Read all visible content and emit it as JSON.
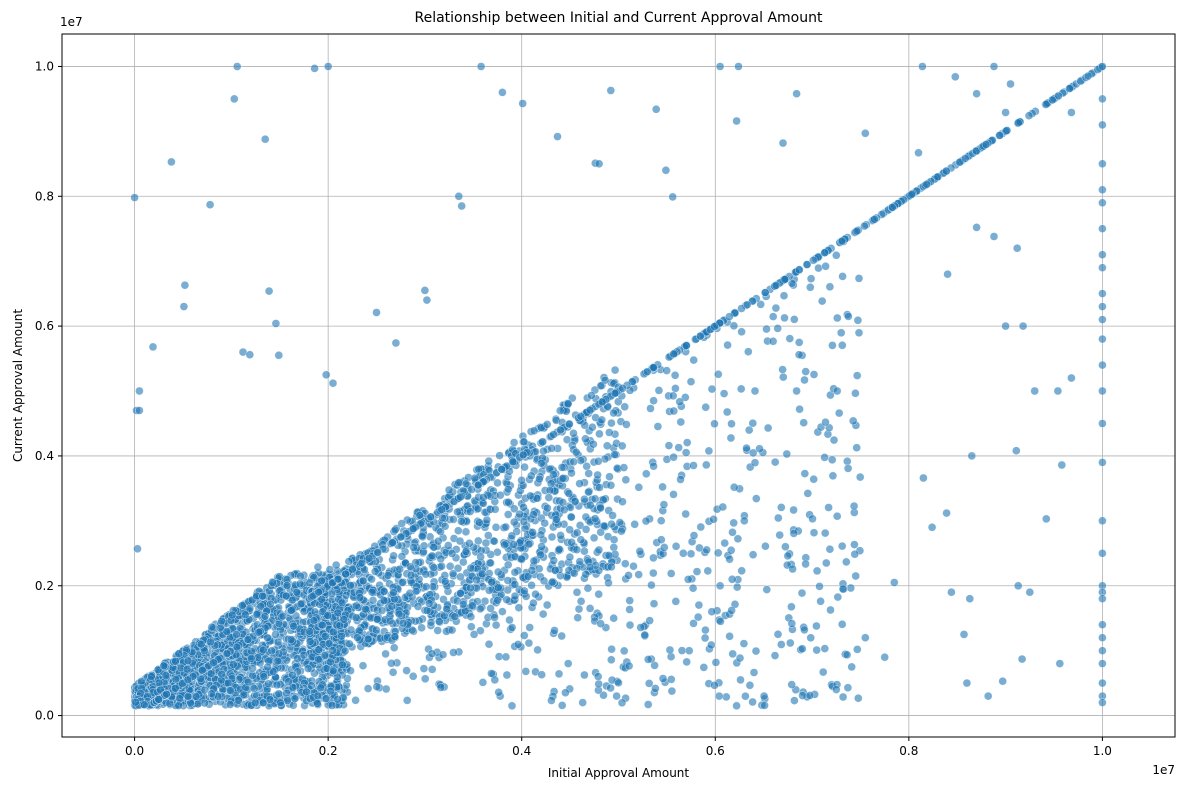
{
  "chart_data": {
    "type": "scatter",
    "title": "Relationship between Initial and Current Approval Amount",
    "xlabel": "Initial Approval Amount",
    "ylabel": "Current Approval Amount",
    "x_offset_label": "1e7",
    "y_offset_label": "1e7",
    "xlim": [
      -750000,
      10750000
    ],
    "ylim": [
      -330000,
      10500000
    ],
    "xticks": [
      0,
      2000000,
      4000000,
      6000000,
      8000000,
      10000000
    ],
    "yticks": [
      0,
      2000000,
      4000000,
      6000000,
      8000000,
      10000000
    ],
    "xtick_labels": [
      "0.0",
      "0.2",
      "0.4",
      "0.6",
      "0.8",
      "1.0"
    ],
    "ytick_labels": [
      "0.0",
      "0.2",
      "0.4",
      "0.6",
      "0.8",
      "1.0"
    ],
    "grid": true,
    "point_color": "#1f77b4",
    "point_alpha": 0.6,
    "series": [
      {
        "points_sample": [
          [
            0,
            7980000
          ],
          [
            20000,
            4700000
          ],
          [
            50000,
            5000000
          ],
          [
            50000,
            4700000
          ],
          [
            30000,
            2570000
          ],
          [
            190000,
            5680000
          ],
          [
            380000,
            8530000
          ],
          [
            520000,
            6630000
          ],
          [
            510000,
            6300000
          ],
          [
            780000,
            7870000
          ],
          [
            1030000,
            9500000
          ],
          [
            1060000,
            10000000
          ],
          [
            1350000,
            8880000
          ],
          [
            1390000,
            6540000
          ],
          [
            1460000,
            6040000
          ],
          [
            1120000,
            5600000
          ],
          [
            1190000,
            5560000
          ],
          [
            1490000,
            5550000
          ],
          [
            1860000,
            9970000
          ],
          [
            2000000,
            10000000
          ],
          [
            1980000,
            5250000
          ],
          [
            2050000,
            5120000
          ],
          [
            2500000,
            6210000
          ],
          [
            2700000,
            5740000
          ],
          [
            3000000,
            6550000
          ],
          [
            3020000,
            6400000
          ],
          [
            3350000,
            8000000
          ],
          [
            3380000,
            7850000
          ],
          [
            3580000,
            10000000
          ],
          [
            3800000,
            9600000
          ],
          [
            4010000,
            9430000
          ],
          [
            4370000,
            8920000
          ],
          [
            4760000,
            8510000
          ],
          [
            4800000,
            8500000
          ],
          [
            4920000,
            9630000
          ],
          [
            5390000,
            9340000
          ],
          [
            5490000,
            8400000
          ],
          [
            5560000,
            7990000
          ],
          [
            6050000,
            10000000
          ],
          [
            6240000,
            10000000
          ],
          [
            6220000,
            9160000
          ],
          [
            6700000,
            8820000
          ],
          [
            6840000,
            9580000
          ],
          [
            7550000,
            8970000
          ],
          [
            8140000,
            10000000
          ],
          [
            8100000,
            8670000
          ],
          [
            8480000,
            9840000
          ],
          [
            8700000,
            9580000
          ],
          [
            8880000,
            10000000
          ],
          [
            9050000,
            9730000
          ],
          [
            9000000,
            9290000
          ],
          [
            9680000,
            9290000
          ],
          [
            9000000,
            6000000
          ],
          [
            9180000,
            6000000
          ],
          [
            9120000,
            7200000
          ],
          [
            9680000,
            5200000
          ],
          [
            9540000,
            5000000
          ],
          [
            9300000,
            5000000
          ],
          [
            9110000,
            4080000
          ],
          [
            9580000,
            3860000
          ],
          [
            9420000,
            3030000
          ],
          [
            9130000,
            2000000
          ],
          [
            9250000,
            1900000
          ],
          [
            9560000,
            800000
          ],
          [
            9170000,
            870000
          ],
          [
            8820000,
            300000
          ],
          [
            8970000,
            530000
          ],
          [
            8600000,
            500000
          ],
          [
            8570000,
            1250000
          ],
          [
            8440000,
            1900000
          ],
          [
            8630000,
            1800000
          ],
          [
            8240000,
            2900000
          ],
          [
            8390000,
            3120000
          ],
          [
            8150000,
            3660000
          ],
          [
            8650000,
            4000000
          ],
          [
            7250000,
            400000
          ],
          [
            7370000,
            430000
          ],
          [
            7410000,
            750000
          ],
          [
            7750000,
            900000
          ],
          [
            7850000,
            2050000
          ],
          [
            7550000,
            1200000
          ],
          [
            7320000,
            1950000
          ],
          [
            6220000,
            150000
          ],
          [
            6180000,
            950000
          ],
          [
            6040000,
            300000
          ],
          [
            5730000,
            1000000
          ],
          [
            5670000,
            2500000
          ],
          [
            6050000,
            2000000
          ],
          [
            6300000,
            3000000
          ],
          [
            6410000,
            5000000
          ],
          [
            6840000,
            5000000
          ],
          [
            7260000,
            5000000
          ],
          [
            8400000,
            6800000
          ],
          [
            8700000,
            7520000
          ],
          [
            8880000,
            7380000
          ],
          [
            4480000,
            800000
          ],
          [
            4630000,
            200000
          ],
          [
            4980000,
            300000
          ],
          [
            4790000,
            600000
          ],
          [
            3900000,
            150000
          ],
          [
            10000000,
            10000000
          ],
          [
            10000000,
            9500000
          ],
          [
            10000000,
            9100000
          ],
          [
            10000000,
            8500000
          ],
          [
            10000000,
            8100000
          ],
          [
            10000000,
            7900000
          ],
          [
            10000000,
            7500000
          ],
          [
            10000000,
            7100000
          ],
          [
            10000000,
            6900000
          ],
          [
            10000000,
            6500000
          ],
          [
            10000000,
            6300000
          ],
          [
            10000000,
            6100000
          ],
          [
            10000000,
            5800000
          ],
          [
            10000000,
            5400000
          ],
          [
            10000000,
            5000000
          ],
          [
            10000000,
            4500000
          ],
          [
            10000000,
            3900000
          ],
          [
            10000000,
            3000000
          ],
          [
            10000000,
            2500000
          ],
          [
            10000000,
            2000000
          ],
          [
            10000000,
            1900000
          ],
          [
            10000000,
            1800000
          ],
          [
            10000000,
            1400000
          ],
          [
            10000000,
            1200000
          ],
          [
            10000000,
            1000000
          ],
          [
            10000000,
            800000
          ],
          [
            10000000,
            500000
          ],
          [
            10000000,
            300000
          ],
          [
            10000000,
            200000
          ]
        ],
        "generated_clusters": [
          {
            "count": 1800,
            "x_range": [
              0,
              2200000
            ],
            "y_mode": "dense_lower_left"
          },
          {
            "count": 1400,
            "x_range": [
              1800000,
              5000000
            ],
            "y_mode": "around_diagonal"
          },
          {
            "count": 350,
            "x_range": [
              5000000,
              7500000
            ],
            "y_mode": "below_diagonal"
          },
          {
            "count": 420,
            "x_range": [
              0,
              10000000
            ],
            "y_mode": "on_diagonal"
          }
        ]
      }
    ]
  }
}
